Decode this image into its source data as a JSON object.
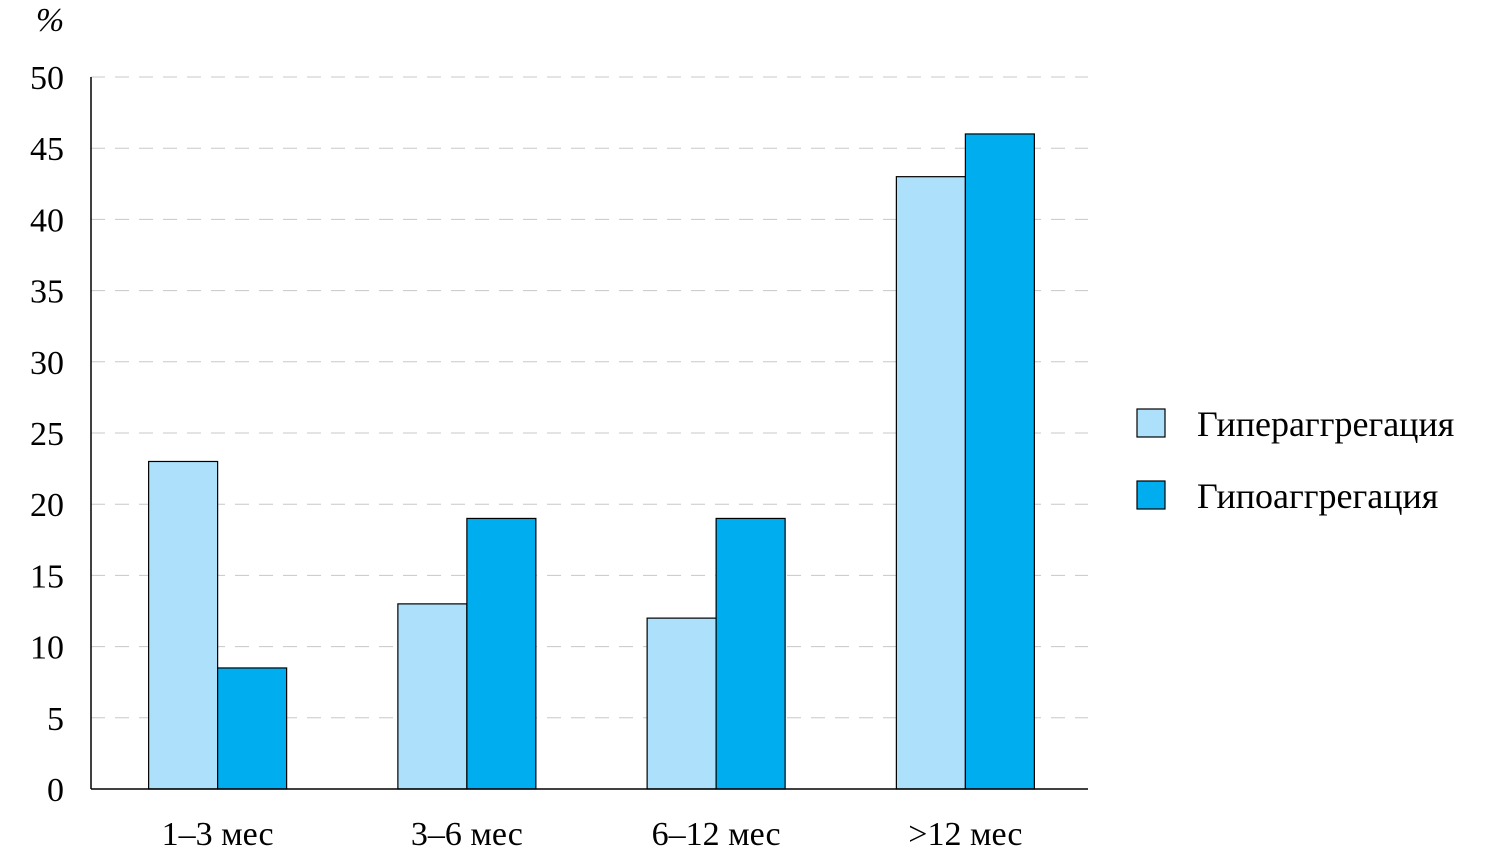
{
  "chart_data": {
    "type": "bar",
    "title": "",
    "xlabel": "",
    "ylabel": "%",
    "categories": [
      "1–3 мес",
      "3–6 мес",
      "6–12 мес",
      ">12 мес"
    ],
    "series": [
      {
        "name": "Гипераггрегация",
        "values": [
          23,
          13,
          12,
          43
        ],
        "color": "#ade1fb"
      },
      {
        "name": "Гипоаггрегация",
        "values": [
          8.5,
          19,
          19,
          46
        ],
        "color": "#00adee"
      }
    ],
    "ylim": [
      0,
      50
    ],
    "yticks": [
      0,
      5,
      10,
      15,
      20,
      25,
      30,
      35,
      40,
      45,
      50
    ],
    "grid": true,
    "legend_position": "right"
  }
}
